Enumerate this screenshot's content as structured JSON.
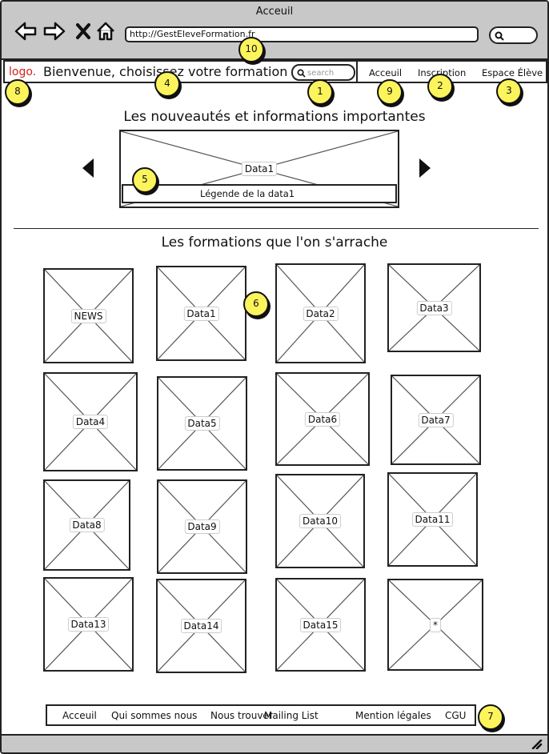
{
  "window": {
    "title": "Acceuil"
  },
  "browser": {
    "url": "http://GestEleveFormation.fr"
  },
  "header": {
    "logo": "logo.",
    "welcome": "Bienvenue, choisissez votre formation",
    "search_placeholder": "search",
    "nav": [
      {
        "label": "Acceuil"
      },
      {
        "label": "Inscription"
      },
      {
        "label": "Espace Élève"
      }
    ]
  },
  "news": {
    "heading": "Les nouveautés et informations importantes",
    "slide_label": "Data1",
    "caption": "Légende de la data1"
  },
  "formations": {
    "heading": "Les formations que l'on s'arrache",
    "items": [
      "NEWS",
      "Data1",
      "Data2",
      "Data3",
      "Data4",
      "Data5",
      "Data6",
      "Data7",
      "Data8",
      "Data9",
      "Data10",
      "Data11",
      "Data13",
      "Data14",
      "Data15",
      "*"
    ]
  },
  "footer": {
    "links": [
      "Acceuil",
      "Qui sommes nous",
      "Nous trouver",
      "Mailing List",
      "Mention légales",
      "CGU"
    ]
  },
  "annotations": {
    "b1": "1",
    "b2": "2",
    "b3": "3",
    "b4": "4",
    "b5": "5",
    "b6": "6",
    "b7": "7",
    "b8": "8",
    "b9": "9",
    "b10": "10"
  }
}
